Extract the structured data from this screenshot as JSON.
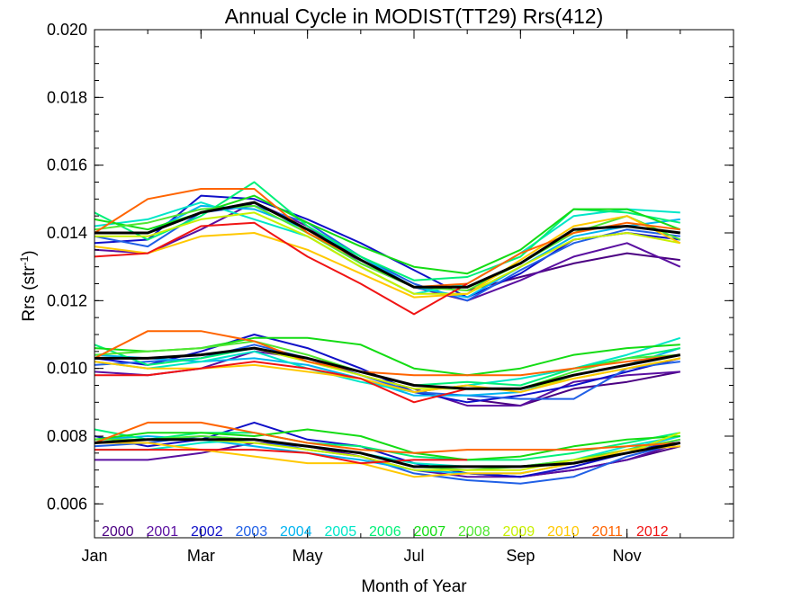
{
  "chart_data": {
    "type": "line",
    "title": "Annual Cycle in MODIST(TT29) Rrs(412)",
    "xlabel": "Month of Year",
    "ylabel_prefix": "Rrs (str",
    "ylabel_sup": "-1",
    "ylabel_suffix": ")",
    "xlim": [
      1,
      13
    ],
    "ylim": [
      0.005,
      0.02
    ],
    "xticks": [
      {
        "x": 1,
        "label": "Jan"
      },
      {
        "x": 3,
        "label": "Mar"
      },
      {
        "x": 5,
        "label": "May"
      },
      {
        "x": 7,
        "label": "Jul"
      },
      {
        "x": 9,
        "label": "Sep"
      },
      {
        "x": 11,
        "label": "Nov"
      }
    ],
    "yticks": [
      {
        "y": 0.006,
        "label": "0.006"
      },
      {
        "y": 0.008,
        "label": "0.008"
      },
      {
        "y": 0.01,
        "label": "0.010"
      },
      {
        "y": 0.012,
        "label": "0.012"
      },
      {
        "y": 0.014,
        "label": "0.014"
      },
      {
        "y": 0.016,
        "label": "0.016"
      },
      {
        "y": 0.018,
        "label": "0.018"
      },
      {
        "y": 0.02,
        "label": "0.020"
      }
    ],
    "x": [
      1,
      2,
      3,
      4,
      5,
      6,
      7,
      8,
      9,
      10,
      11,
      12
    ],
    "groups": [
      "upper",
      "middle",
      "lower"
    ],
    "series": [
      {
        "name": "2000",
        "color": "#4b0082",
        "upper": [
          null,
          null,
          null,
          null,
          null,
          null,
          null,
          0.0123,
          0.0127,
          0.0131,
          0.0134,
          0.0132
        ],
        "middle": [
          null,
          null,
          null,
          null,
          null,
          null,
          null,
          0.0091,
          0.0089,
          0.0094,
          0.0096,
          0.0099
        ],
        "lower": [
          null,
          null,
          null,
          null,
          null,
          null,
          null,
          0.0069,
          0.0068,
          0.007,
          0.0073,
          0.0077
        ]
      },
      {
        "name": "2001",
        "color": "#5a0fa0",
        "upper": [
          0.0135,
          0.0134,
          0.0141,
          0.0149,
          0.0142,
          0.0131,
          0.0124,
          0.012,
          0.0126,
          0.0133,
          0.0137,
          0.013
        ],
        "middle": [
          0.0099,
          0.0098,
          0.01,
          0.0105,
          0.0103,
          0.0098,
          0.0094,
          0.0089,
          0.0089,
          0.0096,
          0.0098,
          0.0099
        ],
        "lower": [
          0.0073,
          0.0073,
          0.0075,
          0.0078,
          0.0077,
          0.0074,
          0.007,
          0.0068,
          0.0068,
          0.007,
          0.0073,
          0.0078
        ]
      },
      {
        "name": "2002",
        "color": "#1010c8",
        "upper": [
          0.0137,
          0.0138,
          0.0151,
          0.015,
          0.0144,
          0.0137,
          0.0129,
          0.0121,
          0.0128,
          0.0138,
          0.014,
          0.0138
        ],
        "middle": [
          0.0103,
          0.0101,
          0.0105,
          0.011,
          0.0106,
          0.01,
          0.0093,
          0.009,
          0.0092,
          0.0095,
          0.0099,
          0.0103
        ],
        "lower": [
          0.008,
          0.0077,
          0.0079,
          0.0084,
          0.0079,
          0.0077,
          0.0072,
          0.0069,
          0.0068,
          0.0071,
          0.0075,
          0.0079
        ]
      },
      {
        "name": "2003",
        "color": "#2060e6",
        "upper": [
          0.0139,
          0.0136,
          0.0146,
          0.0148,
          0.0143,
          0.0133,
          0.0125,
          0.012,
          0.0129,
          0.0137,
          0.0141,
          0.0139
        ],
        "middle": [
          0.0101,
          0.0102,
          0.0103,
          0.0107,
          0.0103,
          0.0098,
          0.0093,
          0.0092,
          0.0091,
          0.0091,
          0.01,
          0.0102
        ],
        "lower": [
          0.0077,
          0.0078,
          0.008,
          0.0079,
          0.0076,
          0.0074,
          0.0069,
          0.0067,
          0.0066,
          0.0068,
          0.0074,
          0.0078
        ]
      },
      {
        "name": "2004",
        "color": "#00b4f0",
        "upper": [
          0.014,
          0.014,
          0.0148,
          0.0147,
          0.0141,
          0.0133,
          0.0124,
          0.0121,
          0.013,
          0.0139,
          0.0142,
          0.0144
        ],
        "middle": [
          0.0104,
          0.0103,
          0.0102,
          0.0103,
          0.0101,
          0.0097,
          0.0092,
          0.0092,
          0.0093,
          0.0098,
          0.0101,
          0.0106
        ],
        "lower": [
          0.0079,
          0.008,
          0.0079,
          0.0077,
          0.0075,
          0.0073,
          0.007,
          0.0069,
          0.0069,
          0.0072,
          0.0076,
          0.008
        ]
      },
      {
        "name": "2005",
        "color": "#00e6c8",
        "upper": [
          0.0142,
          0.0144,
          0.0149,
          0.0144,
          0.0139,
          0.013,
          0.0122,
          0.0125,
          0.0134,
          0.0145,
          0.0147,
          0.0146
        ],
        "middle": [
          0.0102,
          0.01,
          0.0102,
          0.0105,
          0.01,
          0.0096,
          0.0093,
          0.0095,
          0.0097,
          0.01,
          0.0104,
          0.0109
        ],
        "lower": [
          0.0076,
          0.0076,
          0.0078,
          0.0079,
          0.0077,
          0.0075,
          0.0072,
          0.0071,
          0.0071,
          0.0073,
          0.0077,
          0.008
        ]
      },
      {
        "name": "2006",
        "color": "#00f078",
        "upper": [
          0.0146,
          0.0138,
          0.0145,
          0.0155,
          0.0142,
          0.0133,
          0.0126,
          0.0127,
          0.0133,
          0.0147,
          0.0146,
          0.0143
        ],
        "middle": [
          0.0107,
          0.0101,
          0.0103,
          0.0106,
          0.0103,
          0.0099,
          0.0095,
          0.0096,
          0.0095,
          0.01,
          0.0103,
          0.0106
        ],
        "lower": [
          0.0082,
          0.0079,
          0.0081,
          0.0081,
          0.0078,
          0.0077,
          0.0074,
          0.0073,
          0.0073,
          0.0075,
          0.0078,
          0.0081
        ]
      },
      {
        "name": "2007",
        "color": "#14dc14",
        "upper": [
          0.0144,
          0.0141,
          0.0146,
          0.0151,
          0.0143,
          0.0136,
          0.013,
          0.0128,
          0.0135,
          0.0147,
          0.0147,
          0.0141
        ],
        "middle": [
          0.0106,
          0.0105,
          0.0106,
          0.0109,
          0.0109,
          0.0107,
          0.01,
          0.0098,
          0.01,
          0.0104,
          0.0106,
          0.0107
        ],
        "lower": [
          0.0079,
          0.0081,
          0.0081,
          0.008,
          0.0082,
          0.008,
          0.0075,
          0.0073,
          0.0074,
          0.0077,
          0.0079,
          0.008
        ]
      },
      {
        "name": "2008",
        "color": "#50e632",
        "upper": [
          0.0141,
          0.0143,
          0.0147,
          0.0148,
          0.014,
          0.0131,
          0.0124,
          0.0123,
          0.0131,
          0.014,
          0.0145,
          0.0138
        ],
        "middle": [
          0.0104,
          0.0105,
          0.0106,
          0.0108,
          0.0104,
          0.0099,
          0.0095,
          0.0094,
          0.0094,
          0.0099,
          0.0103,
          0.0104
        ],
        "lower": [
          0.0079,
          0.0079,
          0.008,
          0.0079,
          0.0077,
          0.0075,
          0.0071,
          0.007,
          0.0071,
          0.0073,
          0.0076,
          0.0079
        ]
      },
      {
        "name": "2009",
        "color": "#c8f000",
        "upper": [
          0.0139,
          0.0139,
          0.0144,
          0.0146,
          0.0139,
          0.013,
          0.0122,
          0.0122,
          0.013,
          0.0138,
          0.014,
          0.0137
        ],
        "middle": [
          0.0103,
          0.0103,
          0.0104,
          0.0106,
          0.0102,
          0.0098,
          0.0094,
          0.0094,
          0.0094,
          0.0097,
          0.01,
          0.0103
        ],
        "lower": [
          0.0078,
          0.0079,
          0.0079,
          0.0078,
          0.0076,
          0.0074,
          0.007,
          0.007,
          0.007,
          0.0073,
          0.0075,
          0.0081
        ]
      },
      {
        "name": "2010",
        "color": "#ffc800",
        "upper": [
          0.0136,
          0.0134,
          0.0139,
          0.014,
          0.0135,
          0.0128,
          0.0121,
          0.0122,
          0.0132,
          0.0142,
          0.0145,
          0.0137
        ],
        "middle": [
          0.0102,
          0.01,
          0.01,
          0.0101,
          0.0099,
          0.0097,
          0.0093,
          0.0095,
          0.0093,
          0.0097,
          0.01,
          0.0103
        ],
        "lower": [
          0.0078,
          0.0078,
          0.0076,
          0.0074,
          0.0072,
          0.0072,
          0.0068,
          0.0069,
          0.0069,
          0.0072,
          0.0076,
          0.0077
        ]
      },
      {
        "name": "2011",
        "color": "#ff6400",
        "upper": [
          0.014,
          0.015,
          0.0153,
          0.0153,
          0.014,
          0.0132,
          0.0124,
          0.0125,
          0.0134,
          0.014,
          0.0143,
          0.0141
        ],
        "middle": [
          0.0103,
          0.0111,
          0.0111,
          0.0108,
          0.0102,
          0.0099,
          0.0098,
          0.0098,
          0.0098,
          0.01,
          0.0102,
          0.0104
        ],
        "lower": [
          0.0078,
          0.0084,
          0.0084,
          0.0081,
          0.0078,
          0.0076,
          0.0075,
          0.0076,
          0.0076,
          0.0076,
          0.0077,
          0.0078
        ]
      },
      {
        "name": "2012",
        "color": "#f01414",
        "upper": [
          0.0133,
          0.0134,
          0.0142,
          0.0143,
          0.0133,
          0.0125,
          0.0116,
          0.0125,
          null,
          null,
          null,
          null
        ],
        "middle": [
          0.0098,
          0.0098,
          0.01,
          0.0102,
          0.01,
          0.0097,
          0.009,
          0.0094,
          null,
          null,
          null,
          null
        ],
        "lower": [
          0.0076,
          0.0076,
          0.0076,
          0.0076,
          0.0075,
          0.0072,
          0.0073,
          0.0073,
          null,
          null,
          null,
          null
        ]
      }
    ],
    "mean": {
      "color": "#000000",
      "upper": [
        0.014,
        0.014,
        0.0146,
        0.0149,
        0.0141,
        0.0132,
        0.0124,
        0.0124,
        0.0131,
        0.0141,
        0.0142,
        0.014
      ],
      "middle": [
        0.0103,
        0.0103,
        0.0104,
        0.0106,
        0.0103,
        0.0099,
        0.0095,
        0.0094,
        0.0094,
        0.0098,
        0.0101,
        0.0104
      ],
      "lower": [
        0.0078,
        0.0079,
        0.0079,
        0.0079,
        0.0077,
        0.0075,
        0.0071,
        0.0071,
        0.0071,
        0.0072,
        0.0075,
        0.0078
      ]
    }
  }
}
